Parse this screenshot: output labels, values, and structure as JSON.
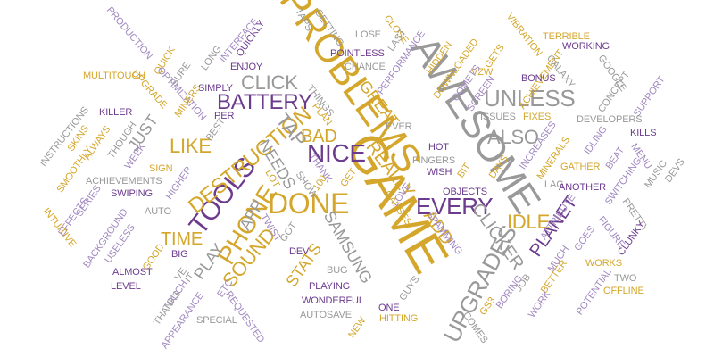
{
  "palette": {
    "gold": "#d4a72c",
    "purple": "#6c3b8e",
    "gray": "#999999",
    "lilac": "#a188c0"
  },
  "words": [
    {
      "text": "GAME",
      "color": "gold"
    },
    {
      "text": "AWESOME",
      "color": "gray"
    },
    {
      "text": "PROBLEMS",
      "color": "gold"
    },
    {
      "text": "DONE",
      "color": "gold"
    },
    {
      "text": "TOOLS",
      "color": "purple"
    },
    {
      "text": "PHONE",
      "color": "gold"
    },
    {
      "text": "DESTRUCTION",
      "color": "gold"
    },
    {
      "text": "NICE",
      "color": "purple"
    },
    {
      "text": "EVERY",
      "color": "purple"
    },
    {
      "text": "UPGRADES",
      "color": "gray"
    },
    {
      "text": "BATTERY",
      "color": "purple"
    },
    {
      "text": "UNLESS",
      "color": "gray"
    },
    {
      "text": "SOUND",
      "color": "gold"
    },
    {
      "text": "ALSO",
      "color": "gray"
    },
    {
      "text": "IDLE",
      "color": "gold"
    },
    {
      "text": "LIKE",
      "color": "gold"
    },
    {
      "text": "CLICK",
      "color": "gray"
    },
    {
      "text": "TAP",
      "color": "gray"
    },
    {
      "text": "BAD",
      "color": "gold"
    },
    {
      "text": "TIME",
      "color": "gold"
    },
    {
      "text": "REALLY",
      "color": "gold"
    },
    {
      "text": "CLICKER",
      "color": "gray"
    },
    {
      "text": "ADD",
      "color": "gold"
    },
    {
      "text": "PLANET",
      "color": "purple"
    },
    {
      "text": "GREAT",
      "color": "gold"
    },
    {
      "text": "JUST",
      "color": "gray"
    },
    {
      "text": "NEEDS",
      "color": "gray"
    },
    {
      "text": "APP",
      "color": "gray"
    },
    {
      "text": "PLAY",
      "color": "gray"
    },
    {
      "text": "STATS",
      "color": "gold"
    },
    {
      "text": "SAMSUNG",
      "color": "gray"
    },
    {
      "text": "QUICK",
      "color": "gold"
    },
    {
      "text": "MULTITOUCH",
      "color": "gold"
    },
    {
      "text": "PRODUCTION",
      "color": "lilac"
    },
    {
      "text": "INTERFACE",
      "color": "lilac"
    },
    {
      "text": "QUICKLY",
      "color": "purple"
    },
    {
      "text": "TAPS",
      "color": "gray"
    },
    {
      "text": "GETTING",
      "color": "gray"
    },
    {
      "text": "LOSE",
      "color": "gray"
    },
    {
      "text": "CLOSE",
      "color": "gold"
    },
    {
      "text": "LAST",
      "color": "gray"
    },
    {
      "text": "VIBRATION",
      "color": "gold"
    },
    {
      "text": "TERRIBLE",
      "color": "gold"
    },
    {
      "text": "WORKING",
      "color": "purple"
    },
    {
      "text": "POINTLESS",
      "color": "purple"
    },
    {
      "text": "PERFORMANCE",
      "color": "lilac"
    },
    {
      "text": "HIDDEN",
      "color": "gold"
    },
    {
      "text": "DOWNLOADED",
      "color": "gold"
    },
    {
      "text": "GETS",
      "color": "gold"
    },
    {
      "text": "ACHIEVEMENT",
      "color": "gold"
    },
    {
      "text": "GALAXY",
      "color": "gray"
    },
    {
      "text": "GOOGLE",
      "color": "gray"
    },
    {
      "text": "CONCEPT",
      "color": "gray"
    },
    {
      "text": "SUPPORT",
      "color": "lilac"
    },
    {
      "text": "ENJOY",
      "color": "purple"
    },
    {
      "text": "CHANCE",
      "color": "gray"
    },
    {
      "text": "VZW",
      "color": "gold"
    },
    {
      "text": "BONUS",
      "color": "purple"
    },
    {
      "text": "LONG",
      "color": "gray"
    },
    {
      "text": "SURE",
      "color": "gray"
    },
    {
      "text": "SIMPLY",
      "color": "purple"
    },
    {
      "text": "UPGRADE",
      "color": "gold"
    },
    {
      "text": "OPTIMIZATION",
      "color": "lilac"
    },
    {
      "text": "MINERS",
      "color": "gold"
    },
    {
      "text": "COMETS",
      "color": "lilac"
    },
    {
      "text": "SCREEN",
      "color": "lilac"
    },
    {
      "text": "THINGS",
      "color": "gray"
    },
    {
      "text": "PLAN",
      "color": "gold"
    },
    {
      "text": "KILLER",
      "color": "purple"
    },
    {
      "text": "PER",
      "color": "purple"
    },
    {
      "text": "BEST",
      "color": "gray"
    },
    {
      "text": "ISSUES",
      "color": "gray"
    },
    {
      "text": "FIXES",
      "color": "gold"
    },
    {
      "text": "DEVELOPERS",
      "color": "gray"
    },
    {
      "text": "INSTRUCTIONS",
      "color": "gray"
    },
    {
      "text": "SKINS",
      "color": "gold"
    },
    {
      "text": "ALWAYS",
      "color": "gold"
    },
    {
      "text": "THOUGH",
      "color": "gray"
    },
    {
      "text": "WEEK",
      "color": "lilac"
    },
    {
      "text": "EVER",
      "color": "gray"
    },
    {
      "text": "HOT",
      "color": "purple"
    },
    {
      "text": "INCREASES",
      "color": "lilac"
    },
    {
      "text": "IDLING",
      "color": "lilac"
    },
    {
      "text": "KILLS",
      "color": "purple"
    },
    {
      "text": "SMOOTHLY",
      "color": "gold"
    },
    {
      "text": "SIGN",
      "color": "gold"
    },
    {
      "text": "FINGERS",
      "color": "gray"
    },
    {
      "text": "DAYS",
      "color": "gold"
    },
    {
      "text": "MINERALS",
      "color": "gold"
    },
    {
      "text": "BEAT",
      "color": "lilac"
    },
    {
      "text": "MENU",
      "color": "lilac"
    },
    {
      "text": "MUSIC",
      "color": "gray"
    },
    {
      "text": "DEVS",
      "color": "gray"
    },
    {
      "text": "ACHIEVEMENTS",
      "color": "gray"
    },
    {
      "text": "HIGHER",
      "color": "lilac"
    },
    {
      "text": "THANK",
      "color": "lilac"
    },
    {
      "text": "WISH",
      "color": "purple"
    },
    {
      "text": "BIT",
      "color": "gold"
    },
    {
      "text": "GATHER",
      "color": "gold"
    },
    {
      "text": "SWITCHING",
      "color": "lilac"
    },
    {
      "text": "SERIES",
      "color": "lilac"
    },
    {
      "text": "SWIPING",
      "color": "purple"
    },
    {
      "text": "LOT",
      "color": "gold"
    },
    {
      "text": "100",
      "color": "gold"
    },
    {
      "text": "GET",
      "color": "gold"
    },
    {
      "text": "LOVE",
      "color": "lilac"
    },
    {
      "text": "LAG",
      "color": "gray"
    },
    {
      "text": "ANOTHER",
      "color": "purple"
    },
    {
      "text": "EFFECTS",
      "color": "lilac"
    },
    {
      "text": "INTUITIVE",
      "color": "gold"
    },
    {
      "text": "AUTO",
      "color": "gray"
    },
    {
      "text": "OBJECTS",
      "color": "purple"
    },
    {
      "text": "ATTRIBUTE",
      "color": "lilac"
    },
    {
      "text": "PRETTY",
      "color": "gray"
    },
    {
      "text": "BACKGROUND",
      "color": "lilac"
    },
    {
      "text": "USELESS",
      "color": "lilac"
    },
    {
      "text": "TWIST",
      "color": "lilac"
    },
    {
      "text": "CAUSES",
      "color": "gold"
    },
    {
      "text": "FIGURE",
      "color": "lilac"
    },
    {
      "text": "BIG",
      "color": "purple"
    },
    {
      "text": "GOT",
      "color": "gray"
    },
    {
      "text": "SPAMMING",
      "color": "lilac"
    },
    {
      "text": "GOES",
      "color": "lilac"
    },
    {
      "text": "CLUNKY",
      "color": "purple"
    },
    {
      "text": "GOOD",
      "color": "gold"
    },
    {
      "text": "DEV",
      "color": "purple"
    },
    {
      "text": "MUCH",
      "color": "lilac"
    },
    {
      "text": "WORKS",
      "color": "gold"
    },
    {
      "text": "ALMOST",
      "color": "purple"
    },
    {
      "text": "VE",
      "color": "gray"
    },
    {
      "text": "LEVEL",
      "color": "purple"
    },
    {
      "text": "IT",
      "color": "gray"
    },
    {
      "text": "BUG",
      "color": "gray"
    },
    {
      "text": "BETTER",
      "color": "gold"
    },
    {
      "text": "TWO",
      "color": "gray"
    },
    {
      "text": "PLAYING",
      "color": "purple"
    },
    {
      "text": "TOUCH",
      "color": "lilac"
    },
    {
      "text": "ETC",
      "color": "lilac"
    },
    {
      "text": "JOB",
      "color": "gray"
    },
    {
      "text": "OFFLINE",
      "color": "gold"
    },
    {
      "text": "WONDERFUL",
      "color": "purple"
    },
    {
      "text": "POTENTIAL",
      "color": "lilac"
    },
    {
      "text": "THANKS",
      "color": "gray"
    },
    {
      "text": "GUYS",
      "color": "gray"
    },
    {
      "text": "BORING",
      "color": "lilac"
    },
    {
      "text": "AUTOSAVE",
      "color": "gray"
    },
    {
      "text": "ONE",
      "color": "purple"
    },
    {
      "text": "GS3",
      "color": "gold"
    },
    {
      "text": "WORK",
      "color": "lilac"
    },
    {
      "text": "APPEARANCE",
      "color": "lilac"
    },
    {
      "text": "REQUESTED",
      "color": "lilac"
    },
    {
      "text": "HITTING",
      "color": "gold"
    },
    {
      "text": "COMES",
      "color": "gray"
    },
    {
      "text": "SPECIAL",
      "color": "gray"
    },
    {
      "text": "NEW",
      "color": "gold"
    },
    {
      "text": "SHOW",
      "color": "gray"
    }
  ]
}
